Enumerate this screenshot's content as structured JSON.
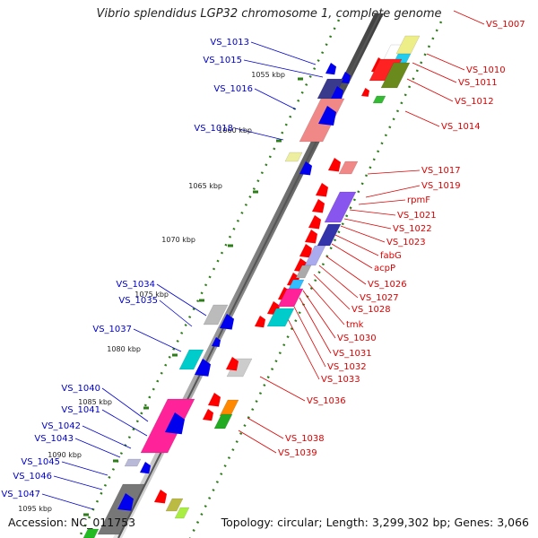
{
  "title": "Vibrio splendidus LGP32 chromosome 1, complete genome",
  "accession": "Accession: NC_011753",
  "topology": "Topology: circular; Length: 3,299,302 bp; Genes: 3,066",
  "colors": {
    "label_left": "#0000cc",
    "label_right": "#dd0000",
    "backbone_dark": "#555555",
    "backbone_light": "#c8c8c8",
    "tick_dots": "#2e7d1a"
  },
  "scale_ticks": [
    "1055 kbp",
    "1060 kbp",
    "1065 kbp",
    "1070 kbp",
    "1075 kbp",
    "1080 kbp",
    "1085 kbp",
    "1090 kbp",
    "1095 kbp"
  ],
  "labels_left": [
    "VS_1013",
    "VS_1015",
    "VS_1016",
    "VS_1018",
    "VS_1034",
    "VS_1035",
    "VS_1037",
    "VS_1040",
    "VS_1041",
    "VS_1042",
    "VS_1043",
    "VS_1045",
    "VS_1046",
    "VS_1047"
  ],
  "labels_right": [
    "VS_1007",
    "VS_1010",
    "VS_1011",
    "VS_1012",
    "VS_1014",
    "VS_1017",
    "VS_1019",
    "rpmF",
    "VS_1021",
    "VS_1022",
    "VS_1023",
    "fabG",
    "acpP",
    "VS_1026",
    "VS_1027",
    "VS_1028",
    "tmk",
    "VS_1030",
    "VS_1031",
    "VS_1032",
    "VS_1033",
    "VS_1036",
    "VS_1038",
    "VS_1039"
  ]
}
